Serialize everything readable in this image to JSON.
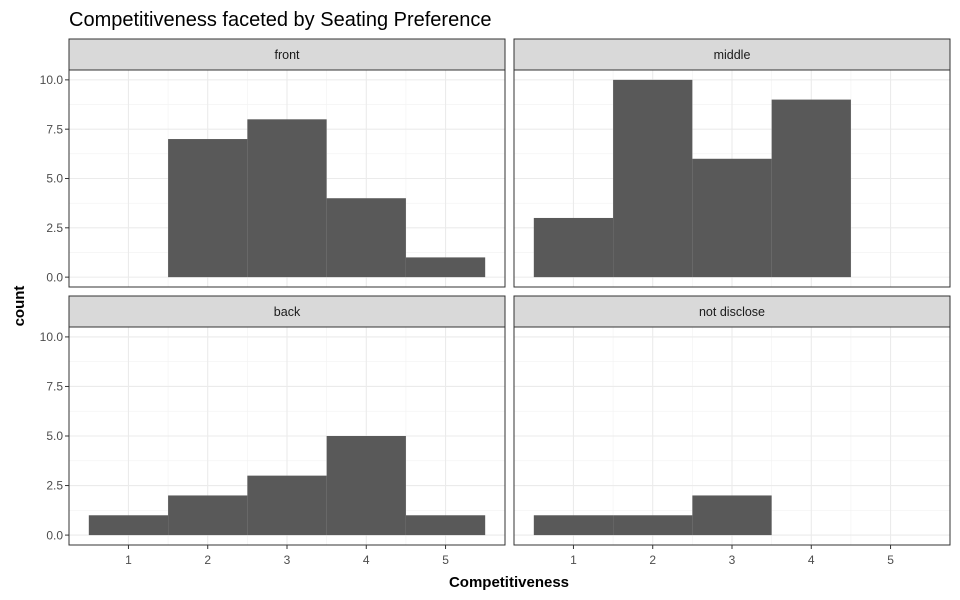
{
  "chart_data": {
    "type": "bar",
    "title": "Competitiveness faceted by Seating Preference",
    "xlabel": "Competitiveness",
    "ylabel": "count",
    "x_ticks": [
      1,
      2,
      3,
      4,
      5
    ],
    "x_tick_labels": [
      "1",
      "2",
      "3",
      "4",
      "5"
    ],
    "y_ticks": [
      0,
      2.5,
      5,
      7.5,
      10
    ],
    "y_tick_labels": [
      "0.0",
      "2.5",
      "5.0",
      "7.5",
      "10.0"
    ],
    "xlim": [
      0.25,
      5.75
    ],
    "ylim": [
      -0.5,
      10.5
    ],
    "grid": true,
    "bar_color": "#595959",
    "facets": [
      {
        "name": "front",
        "bins": [
          1,
          2,
          3,
          4,
          5
        ],
        "values": [
          0,
          7,
          8,
          4,
          1
        ]
      },
      {
        "name": "middle",
        "bins": [
          1,
          2,
          3,
          4,
          5
        ],
        "values": [
          3,
          10,
          6,
          9,
          0
        ]
      },
      {
        "name": "back",
        "bins": [
          1,
          2,
          3,
          4,
          5
        ],
        "values": [
          1,
          2,
          3,
          5,
          1
        ]
      },
      {
        "name": "not disclose",
        "bins": [
          1,
          2,
          3,
          4,
          5
        ],
        "values": [
          1,
          1,
          2,
          0,
          0
        ]
      }
    ]
  }
}
